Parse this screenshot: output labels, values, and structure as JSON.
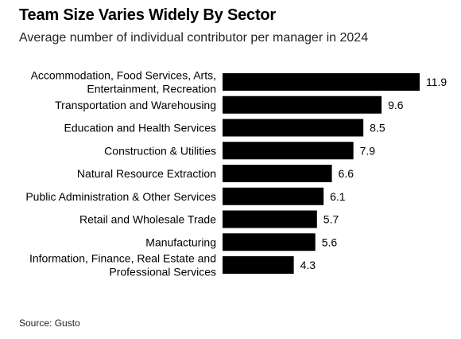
{
  "title": "Team Size Varies Widely By Sector",
  "subtitle": "Average number of individual contributor per manager in 2024",
  "source": "Source: Gusto",
  "chart_data": {
    "type": "bar",
    "orientation": "horizontal",
    "categories": [
      [
        "Accommodation, Food Services, Arts,",
        "Entertainment, Recreation"
      ],
      [
        "Transportation and Warehousing"
      ],
      [
        "Education and Health Services"
      ],
      [
        "Construction & Utilities"
      ],
      [
        "Natural Resource Extraction"
      ],
      [
        "Public Administration & Other Services"
      ],
      [
        "Retail and Wholesale Trade"
      ],
      [
        "Manufacturing"
      ],
      [
        "Information, Finance, Real Estate and",
        "Professional Services"
      ]
    ],
    "values": [
      11.9,
      9.6,
      8.5,
      7.9,
      6.6,
      6.1,
      5.7,
      5.6,
      4.3
    ],
    "value_labels": [
      "11.9",
      "9.6",
      "8.5",
      "7.9",
      "6.6",
      "6.1",
      "5.7",
      "5.6",
      "4.3"
    ],
    "bar_color": "#000000",
    "xlim": [
      0,
      11.9
    ],
    "grid": false,
    "legend": "none"
  }
}
